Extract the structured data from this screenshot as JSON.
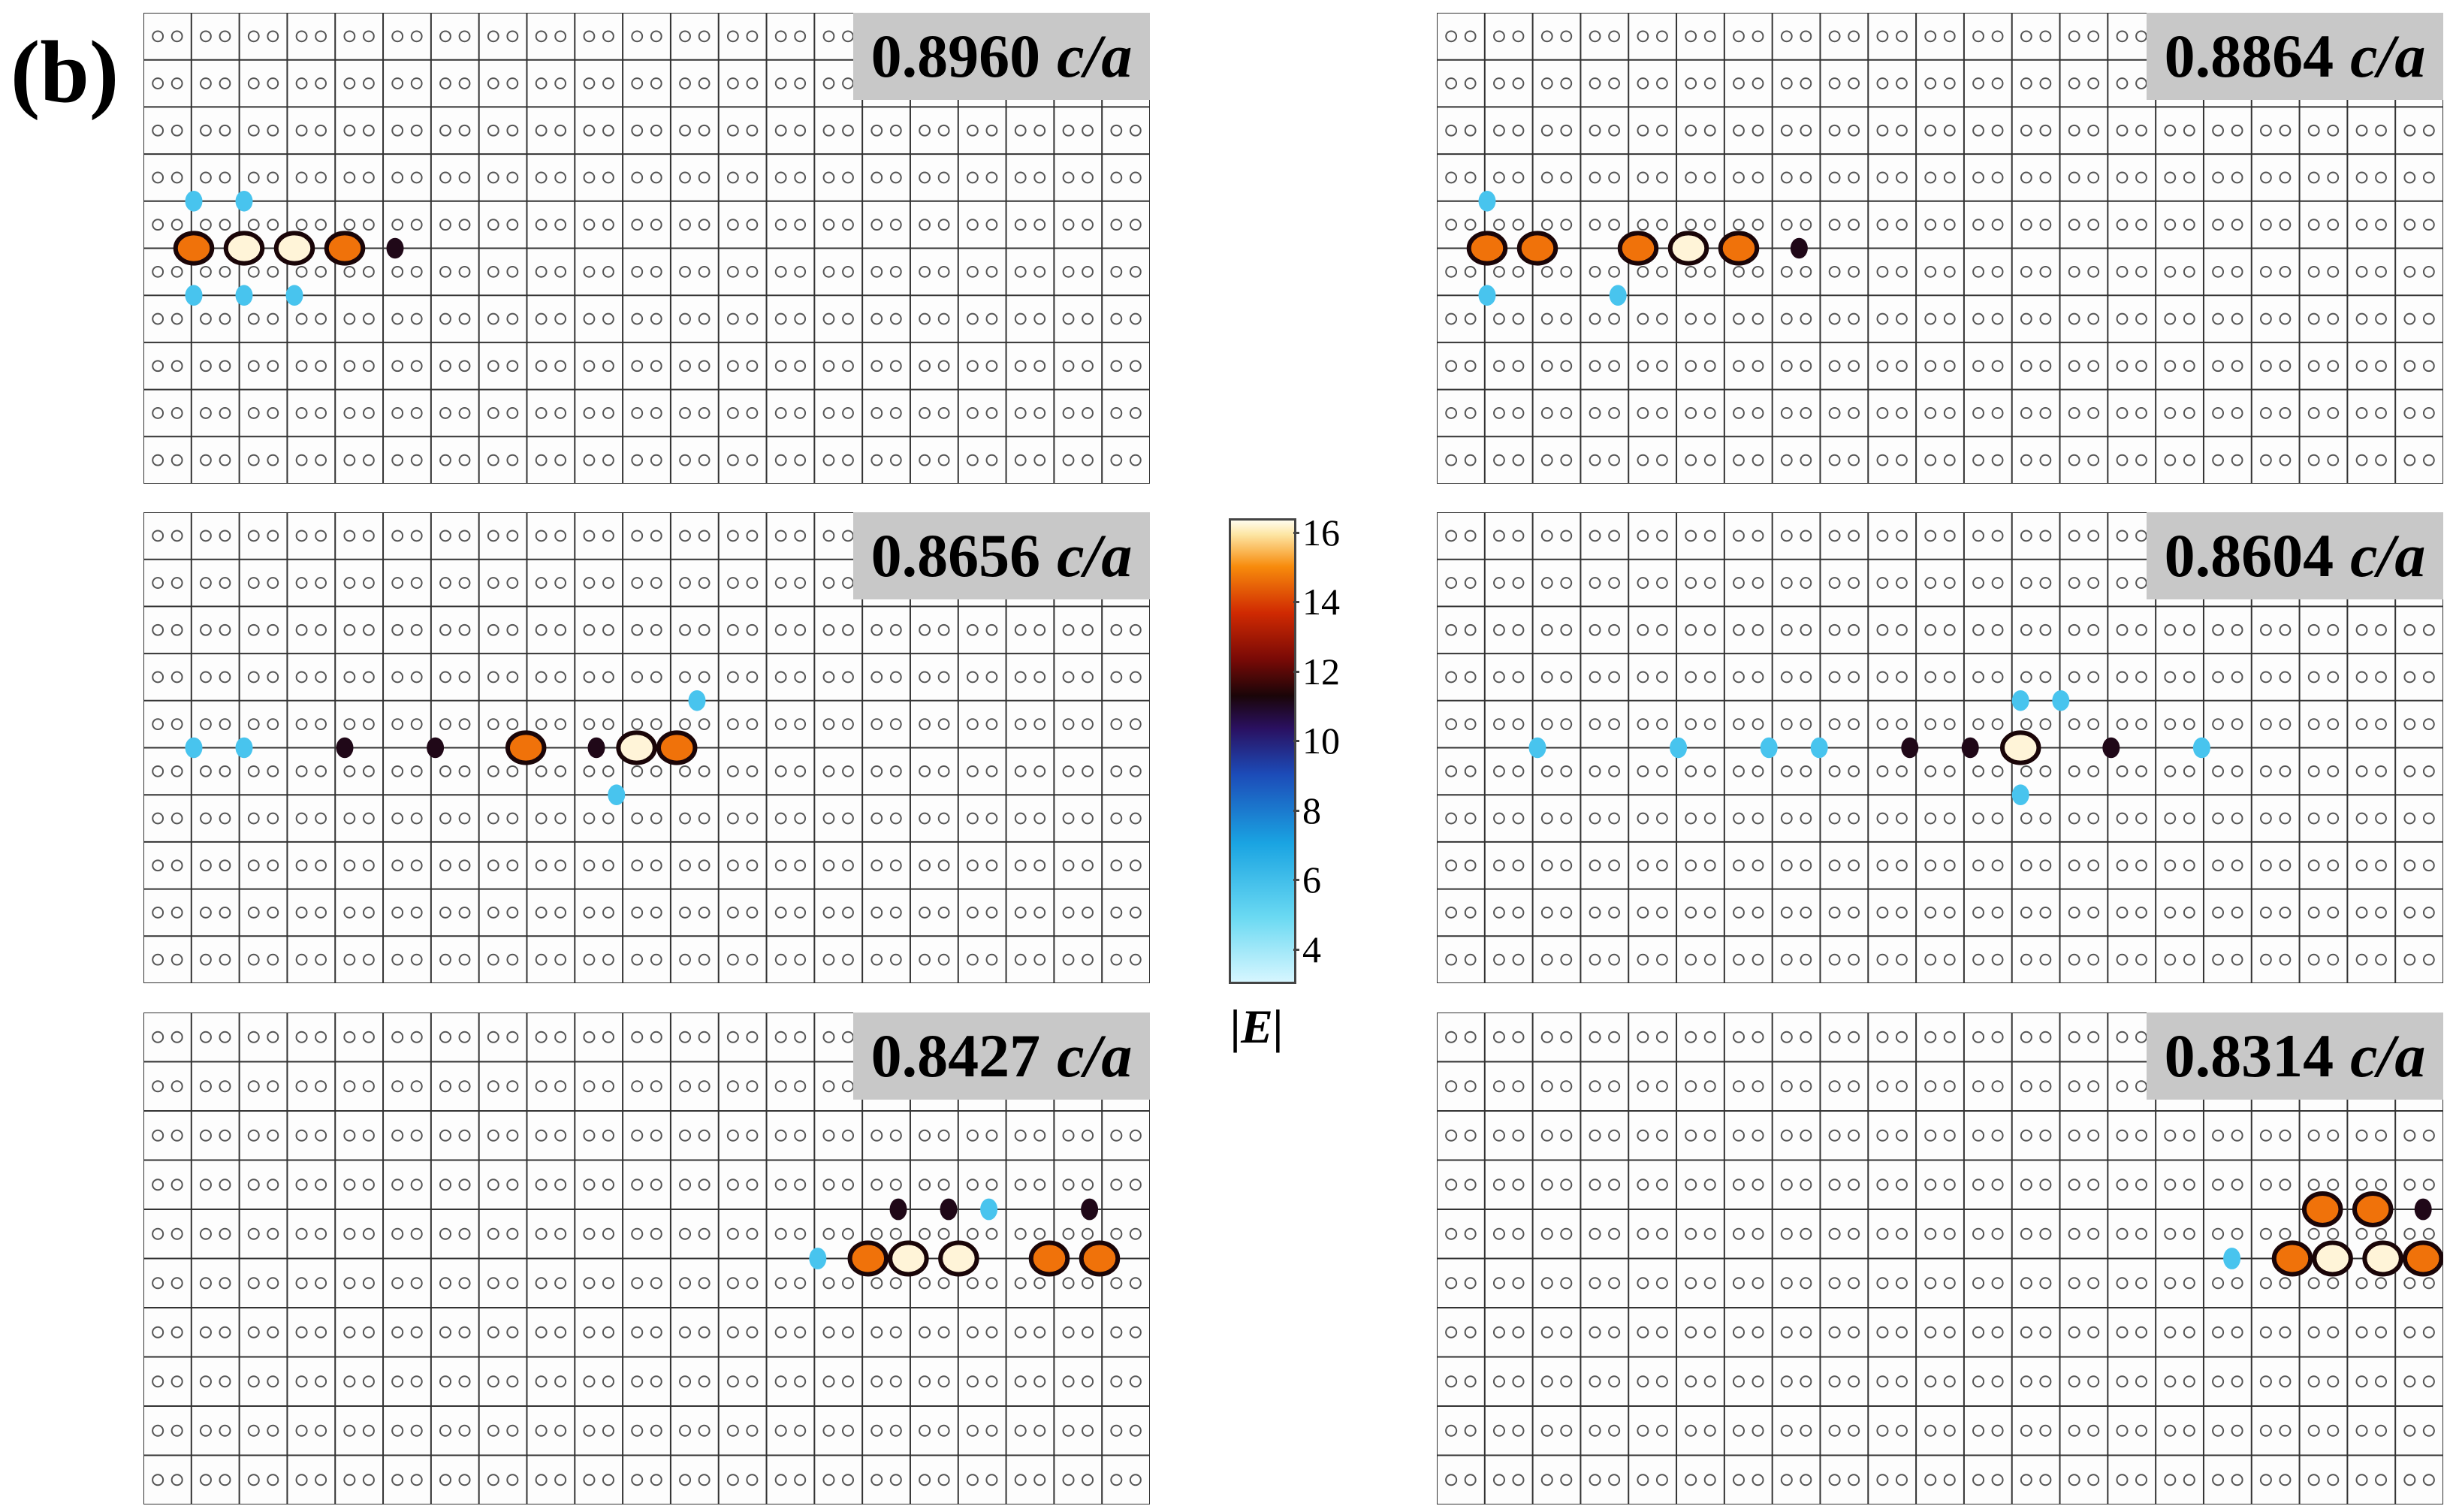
{
  "figure": {
    "panel_letter": "(b)",
    "panels": [
      {
        "id": "p1",
        "frequency": "0.8960",
        "unit": "c/a",
        "blobs": [
          [
            0.05,
            0.5,
            "o"
          ],
          [
            0.1,
            0.5,
            "w"
          ],
          [
            0.15,
            0.5,
            "w"
          ],
          [
            0.2,
            0.5,
            "o"
          ],
          [
            0.25,
            0.5,
            "k"
          ],
          [
            0.05,
            0.4,
            "c"
          ],
          [
            0.1,
            0.4,
            "c"
          ],
          [
            0.1,
            0.6,
            "c"
          ],
          [
            0.15,
            0.6,
            "c"
          ],
          [
            0.05,
            0.6,
            "c"
          ]
        ]
      },
      {
        "id": "p2",
        "frequency": "0.8864",
        "unit": "c/a",
        "blobs": [
          [
            0.05,
            0.5,
            "o"
          ],
          [
            0.1,
            0.5,
            "o"
          ],
          [
            0.2,
            0.5,
            "o"
          ],
          [
            0.25,
            0.5,
            "w"
          ],
          [
            0.3,
            0.5,
            "o"
          ],
          [
            0.36,
            0.5,
            "k"
          ],
          [
            0.05,
            0.4,
            "c"
          ],
          [
            0.05,
            0.6,
            "c"
          ],
          [
            0.18,
            0.6,
            "c"
          ]
        ]
      },
      {
        "id": "p3",
        "frequency": "0.8656",
        "unit": "c/a",
        "blobs": [
          [
            0.05,
            0.5,
            "c"
          ],
          [
            0.1,
            0.5,
            "c"
          ],
          [
            0.2,
            0.5,
            "k"
          ],
          [
            0.29,
            0.5,
            "k"
          ],
          [
            0.38,
            0.5,
            "o"
          ],
          [
            0.45,
            0.5,
            "k"
          ],
          [
            0.49,
            0.5,
            "w"
          ],
          [
            0.53,
            0.5,
            "o"
          ],
          [
            0.47,
            0.6,
            "c"
          ],
          [
            0.55,
            0.4,
            "c"
          ]
        ]
      },
      {
        "id": "p4",
        "frequency": "0.8604",
        "unit": "c/a",
        "blobs": [
          [
            0.1,
            0.5,
            "c"
          ],
          [
            0.24,
            0.5,
            "c"
          ],
          [
            0.33,
            0.5,
            "c"
          ],
          [
            0.38,
            0.5,
            "c"
          ],
          [
            0.47,
            0.5,
            "k"
          ],
          [
            0.53,
            0.5,
            "k"
          ],
          [
            0.58,
            0.5,
            "w"
          ],
          [
            0.67,
            0.5,
            "k"
          ],
          [
            0.76,
            0.5,
            "c"
          ],
          [
            0.58,
            0.4,
            "c"
          ],
          [
            0.58,
            0.6,
            "c"
          ],
          [
            0.62,
            0.4,
            "c"
          ]
        ]
      },
      {
        "id": "p5",
        "frequency": "0.8427",
        "unit": "c/a",
        "blobs": [
          [
            0.67,
            0.5,
            "c"
          ],
          [
            0.72,
            0.5,
            "o"
          ],
          [
            0.76,
            0.5,
            "w"
          ],
          [
            0.81,
            0.5,
            "w"
          ],
          [
            0.75,
            0.4,
            "k"
          ],
          [
            0.8,
            0.4,
            "k"
          ],
          [
            0.9,
            0.5,
            "o"
          ],
          [
            0.95,
            0.5,
            "o"
          ],
          [
            0.94,
            0.4,
            "k"
          ],
          [
            0.84,
            0.4,
            "c"
          ]
        ]
      },
      {
        "id": "p6",
        "frequency": "0.8314",
        "unit": "c/a",
        "blobs": [
          [
            0.79,
            0.5,
            "c"
          ],
          [
            0.85,
            0.5,
            "o"
          ],
          [
            0.89,
            0.5,
            "w"
          ],
          [
            0.94,
            0.5,
            "w"
          ],
          [
            0.98,
            0.5,
            "o"
          ],
          [
            0.88,
            0.4,
            "o"
          ],
          [
            0.93,
            0.4,
            "o"
          ],
          [
            0.98,
            0.4,
            "k"
          ]
        ]
      }
    ],
    "colorbar": {
      "ticks": [
        "16",
        "14",
        "12",
        "10",
        "8",
        "6",
        "4"
      ],
      "tick_values": [
        16,
        14,
        12,
        10,
        8,
        6,
        4
      ],
      "range": [
        3,
        16.4
      ],
      "label": "|E|"
    }
  }
}
